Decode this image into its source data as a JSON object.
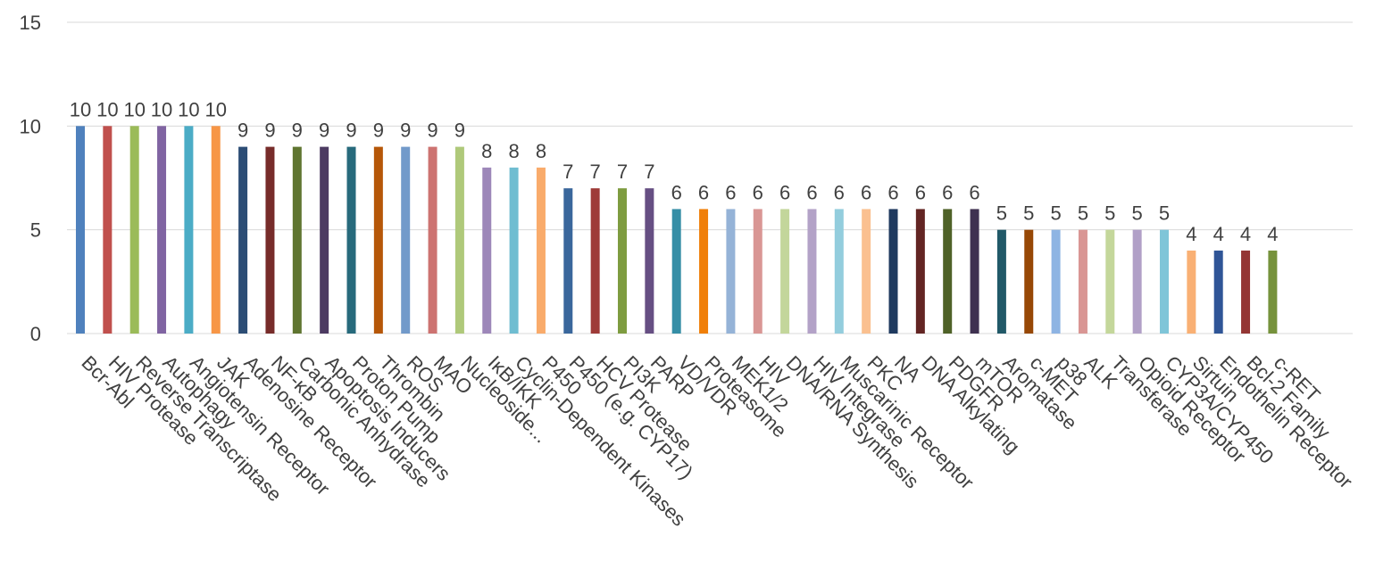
{
  "chart_data": {
    "type": "bar",
    "title": "",
    "xlabel": "",
    "ylabel": "",
    "ylim": [
      0,
      15
    ],
    "yticks": [
      0,
      5,
      10,
      15
    ],
    "grid": true,
    "legend": "none",
    "categories": [
      "Bcr-Abl",
      "HIV Protease",
      "Reverse Transcriptase",
      "Autophagy",
      "Angiotensin Receptor",
      "JAK",
      "Adenosine Receptor",
      "NF-κB",
      "Carbonic Anhydrase",
      "Apoptosis Inducers",
      "Proton Pump",
      "Thrombin",
      "ROS",
      "MAO",
      "Nucleoside...",
      "IκB/IKK",
      "Cyclin-Dependent Kinases",
      "P450",
      "P450 (e.g. CYP17)",
      "HCV Protease",
      "PI3K",
      "PARP",
      "VD/VDR",
      "Proteasome",
      "MEK1/2",
      "HIV",
      "DNA/RNA Synthesis",
      "HIV Integrase",
      "Muscarinic Receptor",
      "PKC",
      "NA",
      "DNA Alkylating",
      "PDGFR",
      "mTOR",
      "Aromatase",
      "c-MET",
      "p38",
      "ALK",
      "Transferase",
      "Opioid Receptor",
      "CYP3A/CYP450",
      "Sirtuin",
      "Endothelin Receptor",
      "Bcl-2 Family",
      "c-RET"
    ],
    "values": [
      10,
      10,
      10,
      10,
      10,
      10,
      9,
      9,
      9,
      9,
      9,
      9,
      9,
      9,
      9,
      8,
      8,
      8,
      7,
      7,
      7,
      7,
      6,
      6,
      6,
      6,
      6,
      6,
      6,
      6,
      6,
      6,
      6,
      6,
      5,
      5,
      5,
      5,
      5,
      5,
      5,
      4,
      4,
      4,
      4
    ],
    "data_labels": [
      "10",
      "10",
      "10",
      "10",
      "10",
      "10",
      "9",
      "9",
      "9",
      "9",
      "9",
      "9",
      "9",
      "9",
      "9",
      "8",
      "8",
      "8",
      "7",
      "7",
      "7",
      "7",
      "6",
      "6",
      "6",
      "6",
      "6",
      "6",
      "6",
      "6",
      "6",
      "6",
      "6",
      "6",
      "5",
      "5",
      "5",
      "5",
      "5",
      "5",
      "5",
      "4",
      "4",
      "4",
      "4"
    ],
    "colors": [
      "#4F81BD",
      "#C0504D",
      "#9BBB59",
      "#8064A2",
      "#4BACC6",
      "#F79646",
      "#2C4D75",
      "#772C2A",
      "#5F7530",
      "#4D3B62",
      "#276A7C",
      "#B65708",
      "#729ACA",
      "#CD7371",
      "#AFC97A",
      "#9D87B9",
      "#6FBDD1",
      "#F9AB6B",
      "#3A679C",
      "#9E3B38",
      "#7E9C40",
      "#664F83",
      "#358EA6",
      "#F07F09",
      "#95B3D7",
      "#D99694",
      "#C3D69B",
      "#B3A2C7",
      "#93CDDD",
      "#FAC090",
      "#1F3A5F",
      "#632523",
      "#4F6228",
      "#3F3151",
      "#215968",
      "#974806",
      "#8EB4E3",
      "#D99694",
      "#C4D79B",
      "#B1A0C7",
      "#7FC5D8",
      "#F9B074",
      "#2F5597",
      "#943634",
      "#76923C"
    ]
  }
}
